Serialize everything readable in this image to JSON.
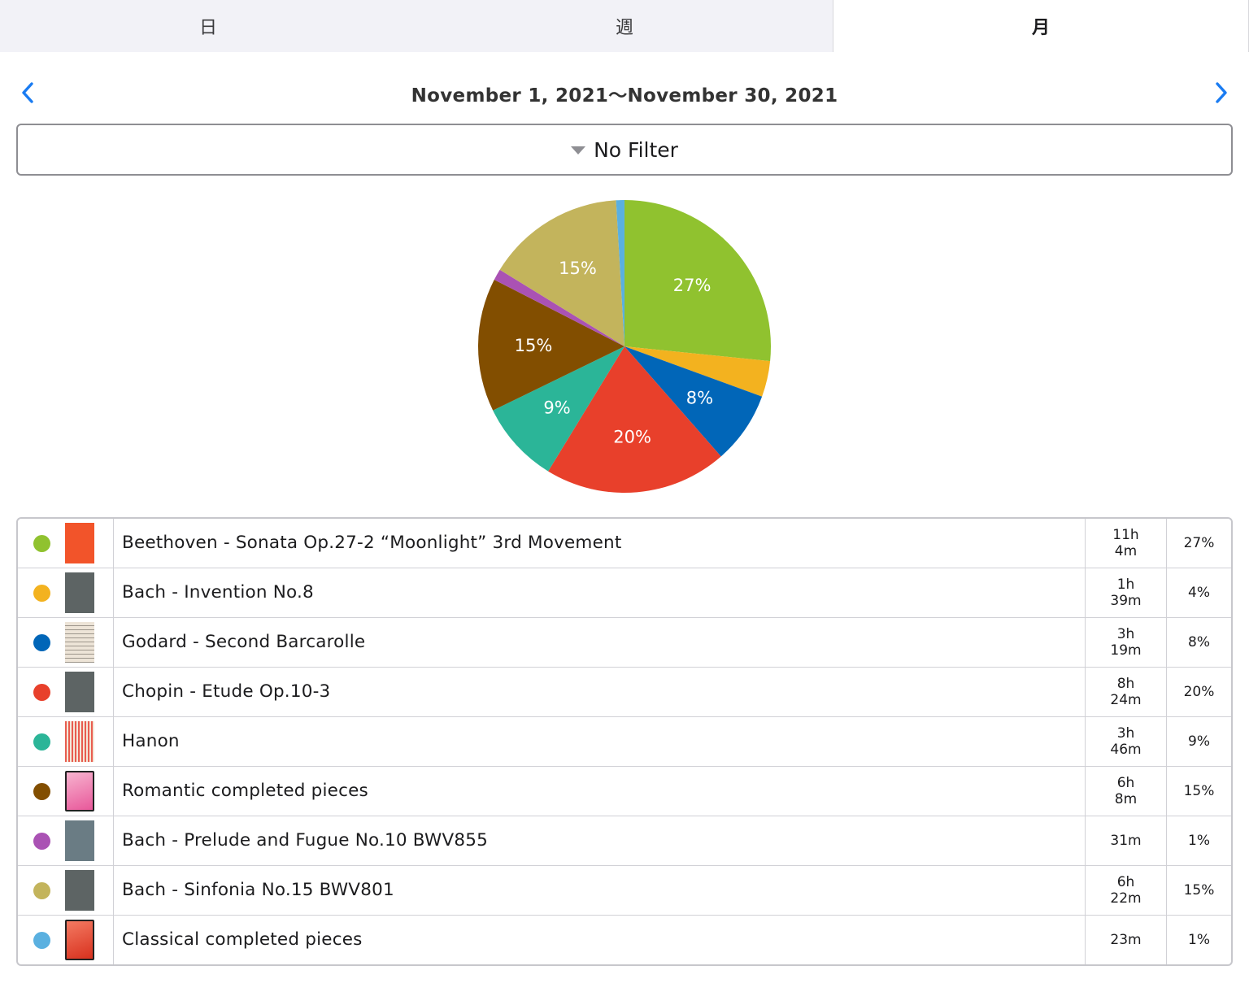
{
  "tabs": [
    {
      "label": "日",
      "selected": false
    },
    {
      "label": "週",
      "selected": false
    },
    {
      "label": "月",
      "selected": true
    }
  ],
  "date_range": "November 1, 2021〜November 30, 2021",
  "filter": {
    "label": "No Filter"
  },
  "colors": {
    "accent": "#1a7cf2"
  },
  "chart_data": {
    "type": "pie",
    "slices": [
      {
        "label": "Beethoven - Sonata Op.27-2 “Moonlight” 3rd Movement",
        "value": 664,
        "pct_label": "27%",
        "color": "#90c22f"
      },
      {
        "label": "Bach - Invention No.8",
        "value": 99,
        "pct_label": "",
        "color": "#f3b21f"
      },
      {
        "label": "Godard - Second Barcarolle",
        "value": 199,
        "pct_label": "8%",
        "color": "#0166b8"
      },
      {
        "label": "Chopin - Etude Op.10-3",
        "value": 504,
        "pct_label": "20%",
        "color": "#e8402b"
      },
      {
        "label": "Hanon",
        "value": 226,
        "pct_label": "9%",
        "color": "#2bb598"
      },
      {
        "label": "Romantic completed pieces",
        "value": 368,
        "pct_label": "15%",
        "color": "#824e00"
      },
      {
        "label": "Bach - Prelude and Fugue No.10 BWV855",
        "value": 31,
        "pct_label": "",
        "color": "#aa52b4"
      },
      {
        "label": "Bach - Sinfonia No.15 BWV801",
        "value": 382,
        "pct_label": "15%",
        "color": "#c3b45c"
      },
      {
        "label": "Classical completed pieces",
        "value": 23,
        "pct_label": "",
        "color": "#5ab0e0"
      }
    ]
  },
  "rows": [
    {
      "title": "Beethoven - Sonata Op.27-2 “Moonlight” 3rd Movement",
      "time": [
        "11h",
        "4m"
      ],
      "pct": "27%",
      "color": "#90c22f",
      "thumb": "orange-score-cover"
    },
    {
      "title": "Bach - Invention No.8",
      "time": [
        "1h",
        "39m"
      ],
      "pct": "4%",
      "color": "#f3b21f",
      "thumb": "gray-score-cover"
    },
    {
      "title": "Godard - Second Barcarolle",
      "time": [
        "3h",
        "19m"
      ],
      "pct": "8%",
      "color": "#0166b8",
      "thumb": "sheet-music-page"
    },
    {
      "title": "Chopin - Etude Op.10-3",
      "time": [
        "8h",
        "24m"
      ],
      "pct": "20%",
      "color": "#e8402b",
      "thumb": "gray-score-cover"
    },
    {
      "title": "Hanon",
      "time": [
        "3h",
        "46m"
      ],
      "pct": "9%",
      "color": "#2bb598",
      "thumb": "hanon-cover"
    },
    {
      "title": "Romantic completed pieces",
      "time": [
        "6h",
        "8m"
      ],
      "pct": "15%",
      "color": "#824e00",
      "thumb": "pink-book-cover"
    },
    {
      "title": "Bach - Prelude and Fugue No.10 BWV855",
      "time": [
        "31m"
      ],
      "pct": "1%",
      "color": "#aa52b4",
      "thumb": "blue-gray-score-cover"
    },
    {
      "title": "Bach - Sinfonia No.15 BWV801",
      "time": [
        "6h",
        "22m"
      ],
      "pct": "15%",
      "color": "#c3b45c",
      "thumb": "gray-score-cover"
    },
    {
      "title": "Classical completed pieces",
      "time": [
        "23m"
      ],
      "pct": "1%",
      "color": "#5ab0e0",
      "thumb": "red-book-cover"
    }
  ]
}
